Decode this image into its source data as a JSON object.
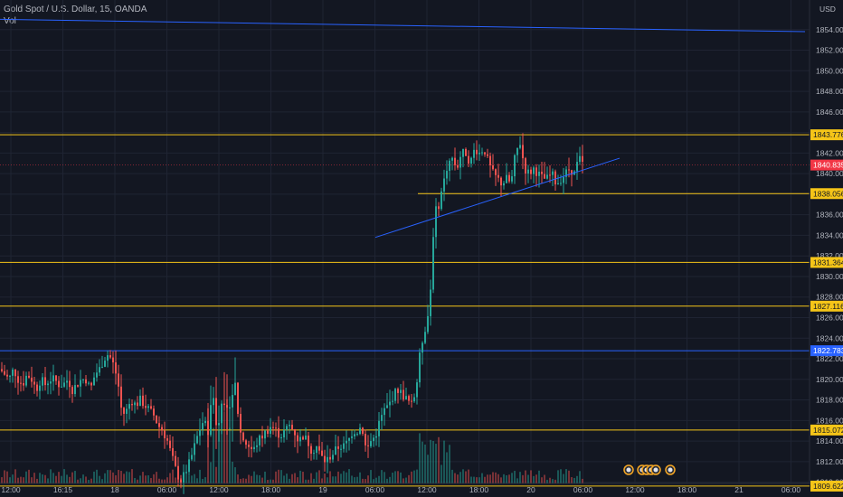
{
  "header": {
    "symbol": "Gold Spot / U.S. Dollar, 15, OANDA",
    "volume_label": "Vol"
  },
  "currency_label": "USD",
  "colors": {
    "background": "#131722",
    "grid": "#1f2433",
    "up": "#26a69a",
    "down": "#ef5350",
    "support": "#f5c518",
    "trend": "#2962ff",
    "last_price": "#f23645",
    "axis_text": "#b2b5be"
  },
  "chart_data": {
    "type": "candlestick",
    "instrument": "Gold Spot / U.S. Dollar",
    "interval": "15",
    "exchange": "OANDA",
    "ylim": [
      1809,
      1856
    ],
    "y_ticks": [
      1810,
      1812,
      1814,
      1816,
      1818,
      1820,
      1822,
      1824,
      1826,
      1828,
      1830,
      1832,
      1834,
      1836,
      1838,
      1840,
      1842,
      1844,
      1846,
      1848,
      1850,
      1852,
      1854
    ],
    "x_ticks": [
      "12:00",
      "16:15",
      "18",
      "06:00",
      "12:00",
      "18:00",
      "19",
      "06:00",
      "12:00",
      "18:00",
      "20",
      "06:00",
      "12:00",
      "18:00",
      "21",
      "06:00"
    ],
    "horizontal_levels": [
      {
        "price": 1843.776,
        "label": "1843.776",
        "style": "support"
      },
      {
        "price": 1838.056,
        "label": "1838.056",
        "style": "support"
      },
      {
        "price": 1831.364,
        "label": "1831.364",
        "style": "support"
      },
      {
        "price": 1827.116,
        "label": "1827.116",
        "style": "support"
      },
      {
        "price": 1822.783,
        "label": "1822.783",
        "style": "trend"
      },
      {
        "price": 1815.072,
        "label": "1815.072",
        "style": "support"
      },
      {
        "price": 1809.622,
        "label": "1809.622",
        "style": "support"
      }
    ],
    "last_price": {
      "price": 1840.835,
      "label": "1840.835"
    },
    "price_path": [
      [
        0,
        1821
      ],
      [
        5,
        1820.5
      ],
      [
        10,
        1820
      ],
      [
        15,
        1821
      ],
      [
        20,
        1820
      ],
      [
        25,
        1819.5
      ],
      [
        30,
        1820.5
      ],
      [
        35,
        1820
      ],
      [
        40,
        1819
      ],
      [
        45,
        1820
      ],
      [
        50,
        1819.5
      ],
      [
        55,
        1820
      ],
      [
        60,
        1820
      ],
      [
        65,
        1819.5
      ],
      [
        70,
        1819.5
      ],
      [
        75,
        1820
      ],
      [
        80,
        1819
      ],
      [
        85,
        1819.5
      ],
      [
        90,
        1820
      ],
      [
        95,
        1820
      ],
      [
        100,
        1819
      ],
      [
        105,
        1820.5
      ],
      [
        110,
        1821
      ],
      [
        115,
        1822
      ],
      [
        120,
        1822.5
      ],
      [
        125,
        1821.5
      ],
      [
        130,
        1820
      ],
      [
        135,
        1816.5
      ],
      [
        140,
        1817
      ],
      [
        145,
        1818
      ],
      [
        150,
        1817.5
      ],
      [
        155,
        1818
      ],
      [
        160,
        1817.5
      ],
      [
        165,
        1817
      ],
      [
        170,
        1816.5
      ],
      [
        175,
        1815.5
      ],
      [
        180,
        1815
      ],
      [
        185,
        1814
      ],
      [
        190,
        1812.5
      ],
      [
        195,
        1811
      ],
      [
        200,
        1810
      ],
      [
        205,
        1811
      ],
      [
        210,
        1812
      ],
      [
        215,
        1813.5
      ],
      [
        220,
        1815
      ],
      [
        225,
        1816
      ],
      [
        230,
        1815
      ],
      [
        235,
        1819
      ],
      [
        240,
        1815
      ],
      [
        245,
        1818
      ],
      [
        250,
        1816.5
      ],
      [
        255,
        1818
      ],
      [
        260,
        1819.5
      ],
      [
        265,
        1815
      ],
      [
        270,
        1814
      ],
      [
        275,
        1813.5
      ],
      [
        280,
        1813
      ],
      [
        285,
        1814
      ],
      [
        290,
        1814.5
      ],
      [
        295,
        1815
      ],
      [
        300,
        1815.5
      ],
      [
        305,
        1815
      ],
      [
        310,
        1814.5
      ],
      [
        315,
        1815
      ],
      [
        320,
        1815.5
      ],
      [
        325,
        1815
      ],
      [
        330,
        1814
      ],
      [
        335,
        1814.5
      ],
      [
        340,
        1814
      ],
      [
        345,
        1813
      ],
      [
        350,
        1813.5
      ],
      [
        355,
        1812.5
      ],
      [
        360,
        1812
      ],
      [
        365,
        1812.5
      ],
      [
        370,
        1813
      ],
      [
        375,
        1813.5
      ],
      [
        380,
        1813.5
      ],
      [
        385,
        1814
      ],
      [
        390,
        1815
      ],
      [
        395,
        1815
      ],
      [
        400,
        1815.5
      ],
      [
        405,
        1813
      ],
      [
        410,
        1814
      ],
      [
        415,
        1814.5
      ],
      [
        420,
        1816
      ],
      [
        425,
        1817
      ],
      [
        430,
        1817.5
      ],
      [
        435,
        1818.5
      ],
      [
        440,
        1819
      ],
      [
        445,
        1818.5
      ],
      [
        450,
        1818
      ],
      [
        455,
        1817.5
      ],
      [
        460,
        1819
      ],
      [
        465,
        1823
      ],
      [
        470,
        1825
      ],
      [
        475,
        1827
      ],
      [
        480,
        1836
      ],
      [
        485,
        1837
      ],
      [
        490,
        1839
      ],
      [
        495,
        1841
      ],
      [
        500,
        1841.5
      ],
      [
        505,
        1840.5
      ],
      [
        510,
        1842
      ],
      [
        515,
        1842
      ],
      [
        520,
        1841
      ],
      [
        525,
        1842.5
      ],
      [
        530,
        1842
      ],
      [
        535,
        1842.5
      ],
      [
        540,
        1841
      ],
      [
        545,
        1840
      ],
      [
        550,
        1839.5
      ],
      [
        555,
        1839
      ],
      [
        560,
        1839.5
      ],
      [
        565,
        1839
      ],
      [
        570,
        1842
      ],
      [
        575,
        1843
      ],
      [
        580,
        1840.5
      ],
      [
        585,
        1840
      ],
      [
        590,
        1840.5
      ],
      [
        595,
        1840
      ],
      [
        600,
        1839.5
      ],
      [
        605,
        1839.5
      ],
      [
        610,
        1840
      ],
      [
        615,
        1839
      ],
      [
        620,
        1839.5
      ],
      [
        625,
        1840
      ],
      [
        630,
        1840.5
      ],
      [
        635,
        1840
      ],
      [
        640,
        1841.5
      ],
      [
        645,
        1840.8
      ]
    ],
    "trendlines": [
      {
        "from": [
          0,
          1855.0
        ],
        "to": [
          890,
          1853.8
        ],
        "color": "trend"
      },
      {
        "from": [
          415,
          1833.8
        ],
        "to": [
          685,
          1841.5
        ],
        "color": "trend"
      }
    ],
    "support_segment": {
      "price": 1838.056,
      "from_x": 462
    }
  }
}
